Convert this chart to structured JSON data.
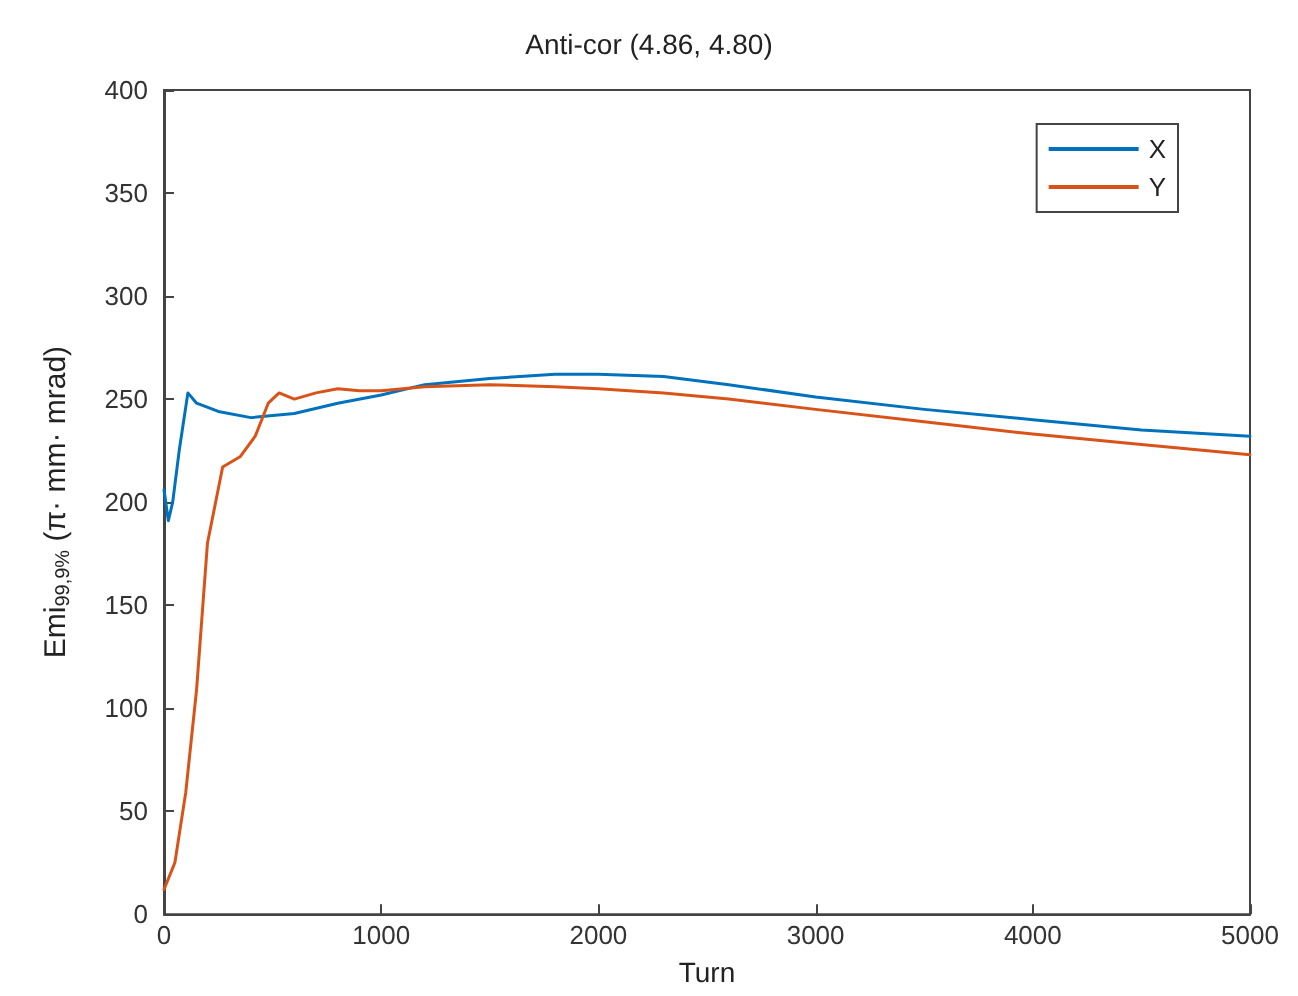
{
  "chart_data": {
    "type": "line",
    "title": "Anti-cor (4.86, 4.80)",
    "xlabel": "Turn",
    "ylabel": "Emi$_{99,9%}$ (π· mm· mrad)",
    "xlim": [
      0,
      5000
    ],
    "xticks": [
      0,
      1000,
      2000,
      3000,
      4000,
      5000
    ],
    "ylim": [
      0,
      400
    ],
    "yticks": [
      0,
      50,
      100,
      150,
      200,
      250,
      300,
      350,
      400
    ],
    "grid": false,
    "legend": "top right",
    "marker": "none",
    "line_style": "solid",
    "series": [
      {
        "name": "X",
        "color": "#0072bd",
        "x": [
          0,
          20,
          40,
          70,
          110,
          150,
          250,
          400,
          600,
          800,
          1000,
          1200,
          1500,
          1800,
          2000,
          2300,
          2600,
          3000,
          3500,
          4000,
          4500,
          5000
        ],
        "values": [
          206,
          191,
          200,
          225,
          253,
          248,
          244,
          241,
          243,
          248,
          252,
          257,
          260,
          262,
          262,
          261,
          257,
          251,
          245,
          240,
          235,
          232
        ]
      },
      {
        "name": "Y",
        "color": "#d95319",
        "x": [
          0,
          50,
          100,
          150,
          200,
          270,
          350,
          420,
          480,
          530,
          600,
          700,
          800,
          900,
          1000,
          1200,
          1500,
          1800,
          2000,
          2300,
          2600,
          3000,
          3500,
          4000,
          4500,
          5000
        ],
        "values": [
          12,
          25,
          59,
          109,
          180,
          217,
          222,
          232,
          248,
          253,
          250,
          253,
          255,
          254,
          254,
          256,
          257,
          256,
          255,
          253,
          250,
          245,
          239,
          233,
          228,
          223
        ]
      }
    ]
  }
}
